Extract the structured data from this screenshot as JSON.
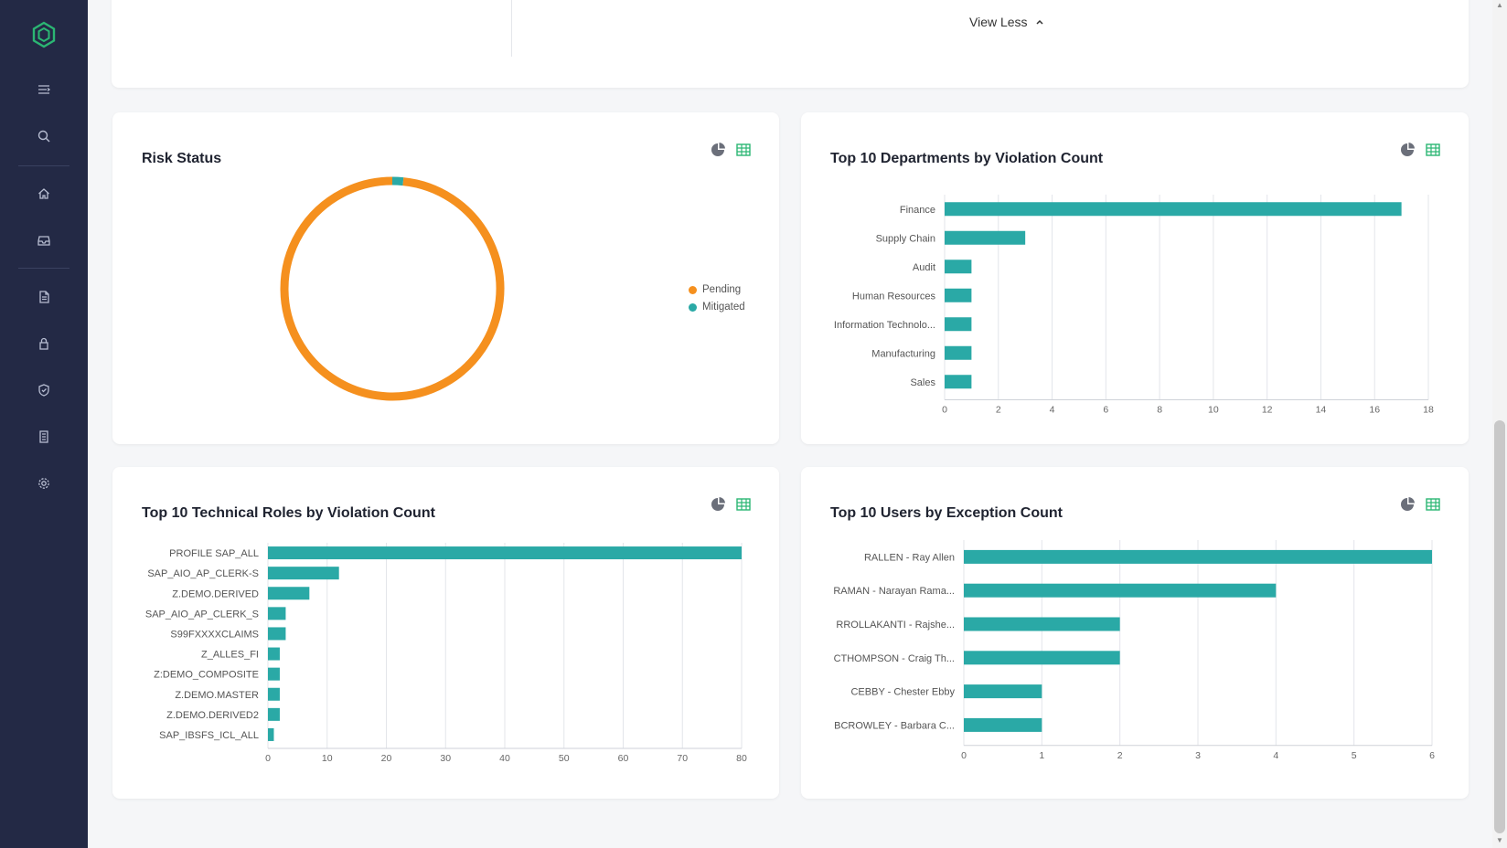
{
  "sidebar": {
    "logo": "hexagon-logo",
    "items": [
      "menu-icon",
      "search-icon",
      "home-icon",
      "inbox-icon",
      "document-icon",
      "lock-icon",
      "shield-icon",
      "report-icon",
      "settings-icon"
    ]
  },
  "top_section": {
    "view_less_label": "View Less"
  },
  "cards": {
    "risk_status": {
      "title": "Risk Status"
    },
    "departments": {
      "title": "Top 10 Departments by Violation Count"
    },
    "roles": {
      "title": "Top 10 Technical Roles by Violation Count"
    },
    "users": {
      "title": "Top 10 Users by Exception Count"
    }
  },
  "colors": {
    "bar": "#2aa9a6",
    "pending": "#f5901e",
    "mitigated": "#2aa9a6",
    "sidebar": "#232945",
    "accent": "#2bb673"
  },
  "chart_data": [
    {
      "type": "pie",
      "title": "Risk Status",
      "categories": [
        "Pending",
        "Mitigated"
      ],
      "values": [
        98.4,
        1.6
      ],
      "legend": "right"
    },
    {
      "type": "bar",
      "orientation": "horizontal",
      "title": "Top 10 Departments by Violation Count",
      "categories": [
        "Finance",
        "Supply Chain",
        "Audit",
        "Human Resources",
        "Information Technolo...",
        "Manufacturing",
        "Sales"
      ],
      "values": [
        17,
        3,
        1,
        1,
        1,
        1,
        1
      ],
      "xlim": [
        0,
        18
      ],
      "ticks": [
        0,
        2,
        4,
        6,
        8,
        10,
        12,
        14,
        16,
        18
      ],
      "grid": true
    },
    {
      "type": "bar",
      "orientation": "horizontal",
      "title": "Top 10 Technical Roles by Violation Count",
      "categories": [
        "PROFILE SAP_ALL",
        "SAP_AIO_AP_CLERK-S",
        "Z.DEMO.DERIVED",
        "SAP_AIO_AP_CLERK_S",
        "S99FXXXXCLAIMS",
        "Z_ALLES_FI",
        "Z:DEMO_COMPOSITE",
        "Z.DEMO.MASTER",
        "Z.DEMO.DERIVED2",
        "SAP_IBSFS_ICL_ALL"
      ],
      "values": [
        80,
        12,
        7,
        3,
        3,
        2,
        2,
        2,
        2,
        1
      ],
      "xlim": [
        0,
        80
      ],
      "ticks": [
        0,
        10,
        20,
        30,
        40,
        50,
        60,
        70,
        80
      ],
      "grid": true
    },
    {
      "type": "bar",
      "orientation": "horizontal",
      "title": "Top 10 Users by Exception Count",
      "categories": [
        "RALLEN - Ray Allen",
        "RAMAN - Narayan Rama...",
        "RROLLAKANTI - Rajshe...",
        "CTHOMPSON - Craig Th...",
        "CEBBY - Chester Ebby",
        "BCROWLEY - Barbara C..."
      ],
      "values": [
        6,
        4,
        2,
        2,
        1,
        1
      ],
      "xlim": [
        0,
        6
      ],
      "ticks": [
        0,
        1,
        2,
        3,
        4,
        5,
        6
      ],
      "grid": true
    }
  ]
}
